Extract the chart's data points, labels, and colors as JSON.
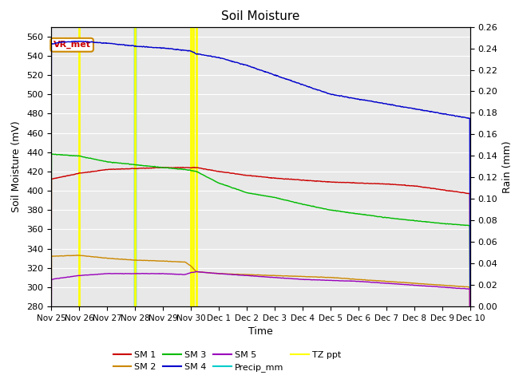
{
  "title": "Soil Moisture",
  "xlabel": "Time",
  "ylabel_left": "Soil Moisture (mV)",
  "ylabel_right": "Rain (mm)",
  "ylim_left": [
    280,
    570
  ],
  "ylim_right": [
    0.0,
    0.26
  ],
  "yticks_left": [
    280,
    300,
    320,
    340,
    360,
    380,
    400,
    420,
    440,
    460,
    480,
    500,
    520,
    540,
    560
  ],
  "yticks_right": [
    0.0,
    0.02,
    0.04,
    0.06,
    0.08,
    0.1,
    0.12,
    0.14,
    0.16,
    0.18,
    0.2,
    0.22,
    0.24,
    0.26
  ],
  "xtick_labels": [
    "Nov 25",
    "Nov 26",
    "Nov 27",
    "Nov 28",
    "Nov 29",
    "Nov 30",
    "Dec 1",
    "Dec 2",
    "Dec 3",
    "Dec 4",
    "Dec 5",
    "Dec 6",
    "Dec 7",
    "Dec 8",
    "Dec 9",
    "Dec 10"
  ],
  "background_color": "#e8e8e8",
  "sm1_color": "#cc0000",
  "sm2_color": "#cc8800",
  "sm3_color": "#00bb00",
  "sm4_color": "#0000cc",
  "sm5_color": "#9900bb",
  "precip_color": "#00cccc",
  "tz_ppt_color": "#ffff00",
  "vr_met_box_color": "#cc8800",
  "vr_met_text_color": "#cc0000",
  "tz_ppt_x": [
    1.0,
    3.0,
    5.0,
    5.1,
    5.2
  ],
  "precip_x": [
    3.0
  ],
  "sm4_kx": [
    0,
    0.3,
    1.0,
    2.0,
    3.0,
    4.0,
    5.0,
    5.2,
    6,
    7,
    8,
    9,
    10,
    11,
    12,
    13,
    14,
    15
  ],
  "sm4_ky": [
    552,
    554,
    555,
    553,
    550,
    548,
    545,
    542,
    538,
    530,
    520,
    510,
    500,
    495,
    490,
    485,
    480,
    475
  ],
  "sm1_kx": [
    0,
    1,
    2,
    3,
    4,
    5,
    5.2,
    6,
    7,
    8,
    9,
    10,
    11,
    12,
    13,
    14,
    15
  ],
  "sm1_ky": [
    412,
    418,
    422,
    423,
    424,
    424,
    424,
    420,
    416,
    413,
    411,
    409,
    408,
    407,
    405,
    401,
    397
  ],
  "sm3_kx": [
    0,
    1,
    2,
    3,
    4,
    4.8,
    5.2,
    6,
    7,
    8,
    9,
    10,
    11,
    12,
    13,
    14,
    15
  ],
  "sm3_ky": [
    438,
    436,
    430,
    427,
    424,
    422,
    420,
    408,
    398,
    393,
    386,
    380,
    376,
    372,
    369,
    366,
    364
  ],
  "sm2_kx": [
    0,
    1,
    2,
    3,
    4,
    4.8,
    5.0,
    5.2,
    6,
    7,
    8,
    9,
    10,
    11,
    12,
    13,
    14,
    15
  ],
  "sm2_ky": [
    332,
    333,
    330,
    328,
    327,
    326,
    322,
    316,
    314,
    313,
    312,
    311,
    310,
    308,
    306,
    304,
    302,
    300
  ],
  "sm5_kx": [
    0,
    1,
    2,
    3,
    4,
    4.8,
    5.0,
    5.2,
    6,
    7,
    8,
    9,
    10,
    11,
    12,
    13,
    14,
    15
  ],
  "sm5_ky": [
    308,
    312,
    314,
    314,
    314,
    313,
    315,
    316,
    314,
    312,
    310,
    308,
    307,
    306,
    304,
    302,
    300,
    298
  ]
}
